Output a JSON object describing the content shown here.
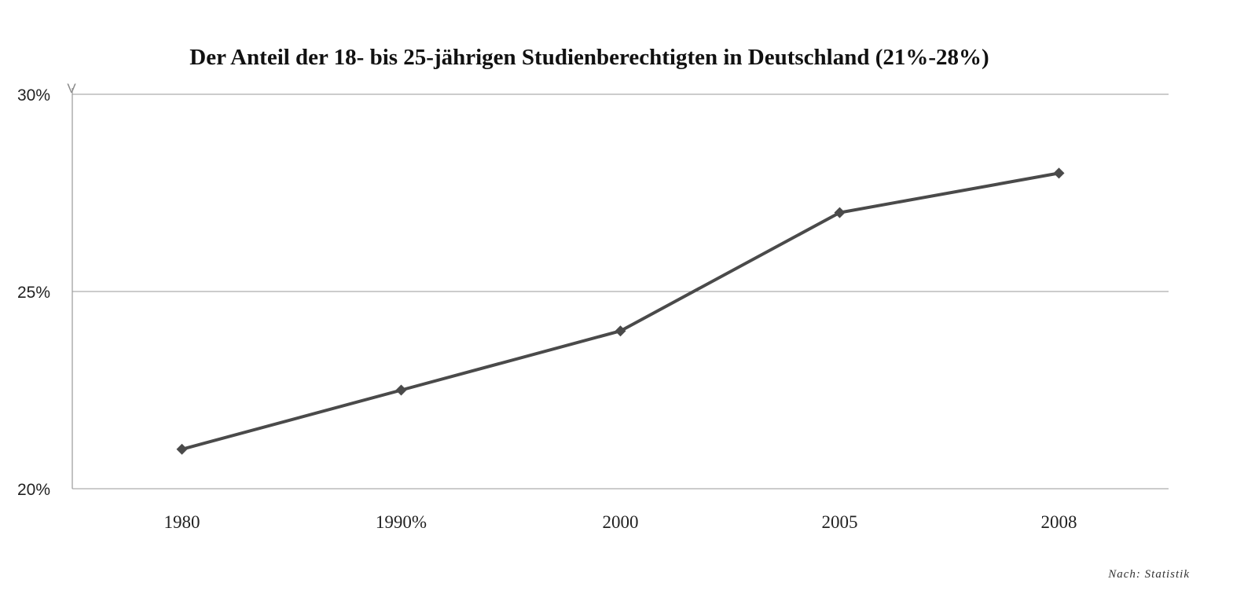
{
  "chart_data": {
    "type": "line",
    "title": "Der Anteil der 18- bis 25-jährigen Studienberechtigten in Deutschland (21%-28%)",
    "categories": [
      "1980",
      "1990%",
      "2000",
      "2005",
      "2008"
    ],
    "series": [
      {
        "values": [
          21,
          22.5,
          24,
          27,
          28
        ]
      }
    ],
    "ylim": [
      20,
      30
    ],
    "yticks": [
      20,
      25,
      30
    ],
    "ytick_labels": [
      "20%",
      "25%",
      "30%"
    ],
    "y_axis_top_mark": "V",
    "grid": true,
    "legend": "none",
    "source": "Nach: Statistik",
    "colors": {
      "line": "#4a4a4a",
      "grid": "#9a9a9a"
    }
  }
}
